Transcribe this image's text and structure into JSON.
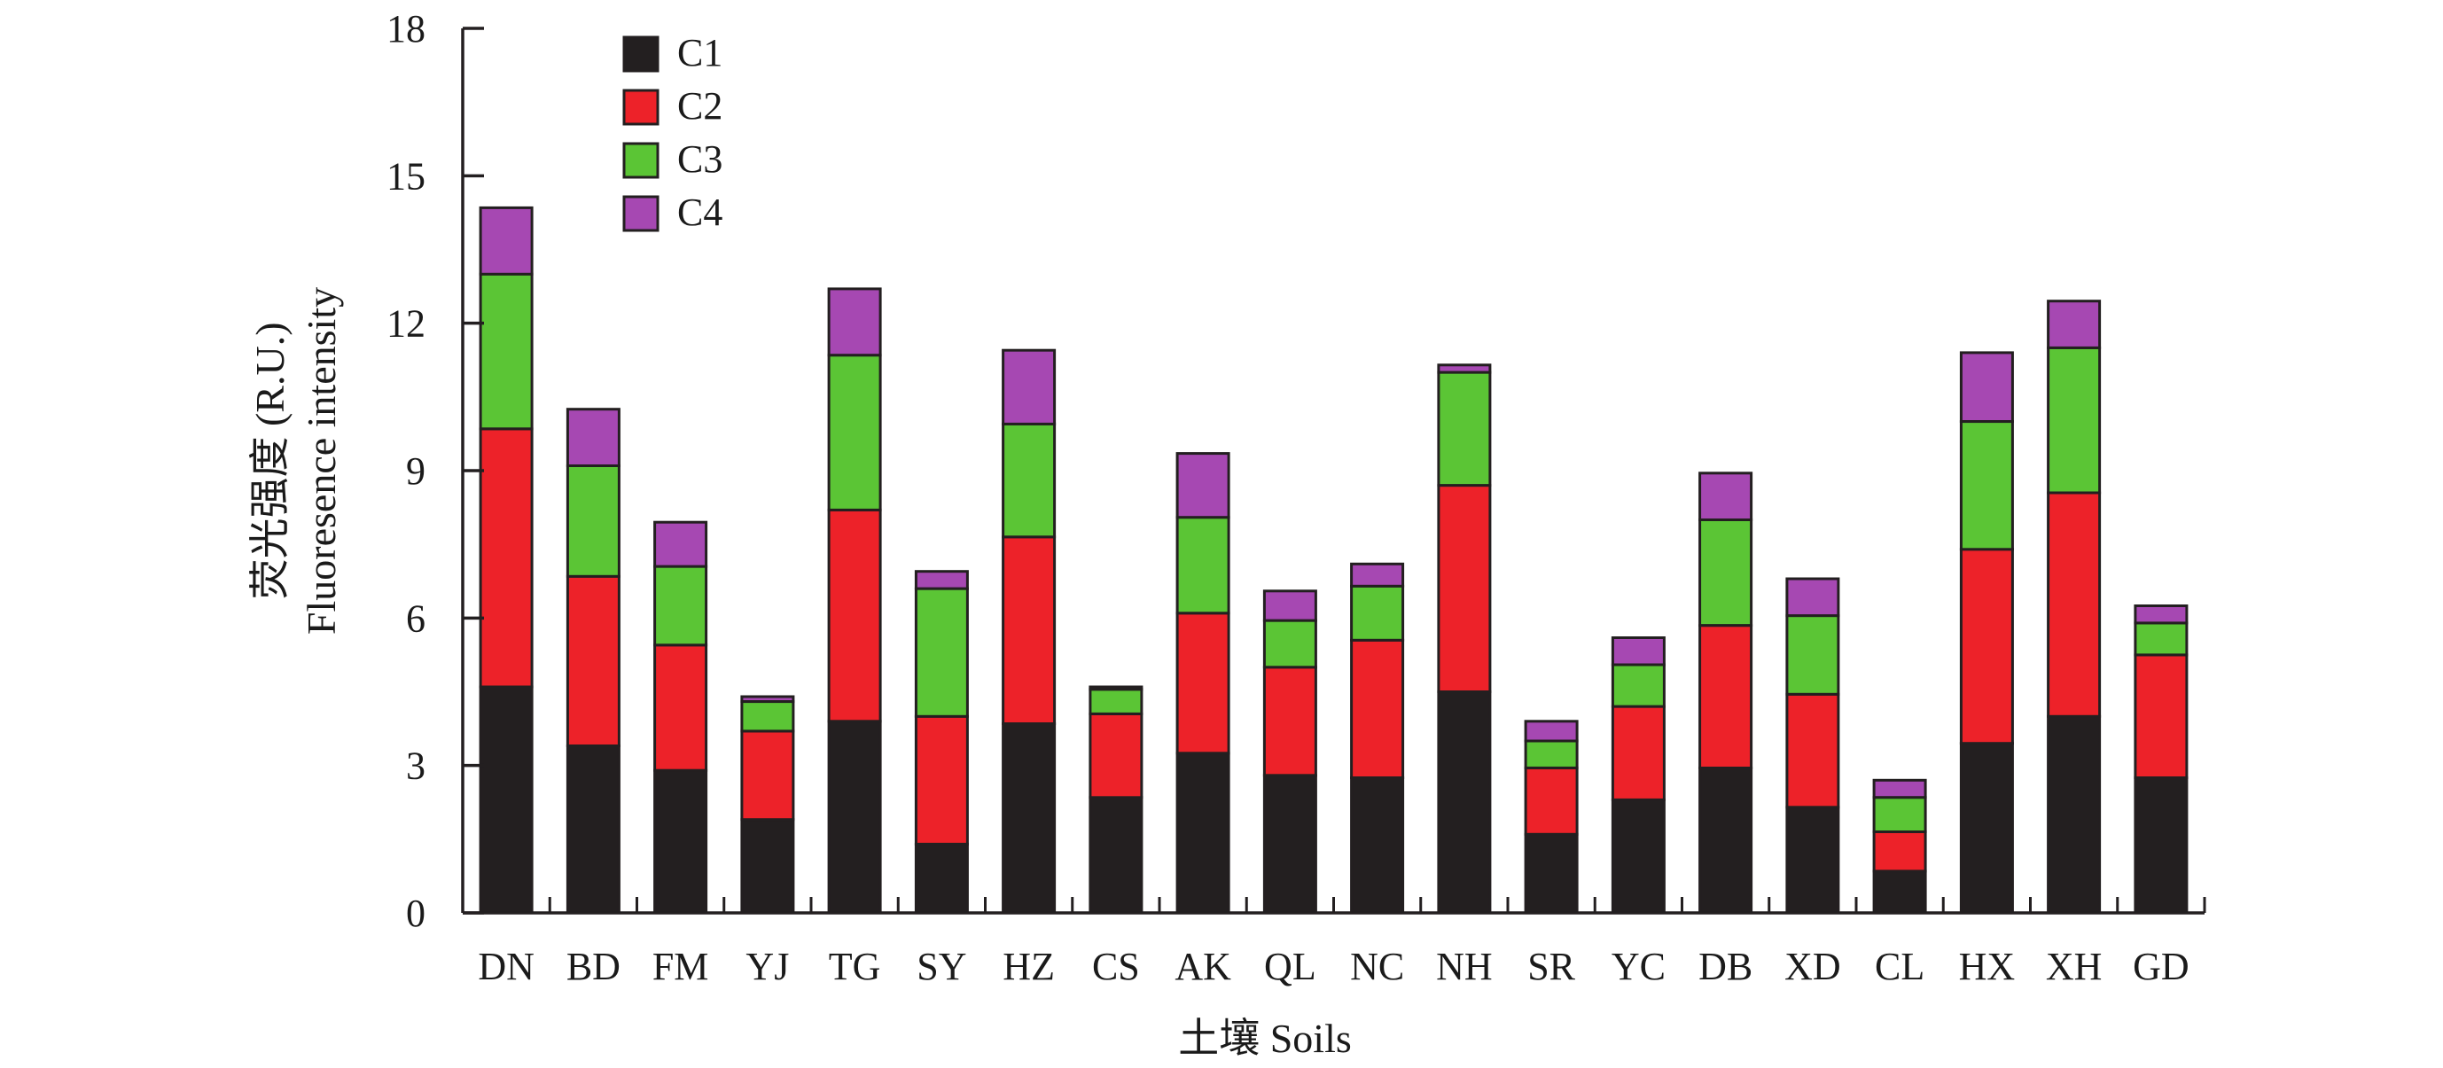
{
  "chart_data": {
    "type": "bar",
    "stacked": true,
    "title": "",
    "xlabel": "土壤 Soils",
    "ylabel_lines": [
      "荧光强度 (R.U.)",
      "Fluoresence intensity"
    ],
    "ylim": [
      0,
      18
    ],
    "yticks": [
      0,
      3,
      6,
      9,
      12,
      15,
      18
    ],
    "legend_position": "top-left",
    "grid": false,
    "categories": [
      "DN",
      "BD",
      "FM",
      "YJ",
      "TG",
      "SY",
      "HZ",
      "CS",
      "AK",
      "QL",
      "NC",
      "NH",
      "SR",
      "YC",
      "DB",
      "XD",
      "CL",
      "HX",
      "XH",
      "GD"
    ],
    "series": [
      {
        "name": "C1",
        "color": "#231f20",
        "values": [
          4.6,
          3.4,
          2.9,
          1.9,
          3.9,
          1.4,
          3.85,
          2.35,
          3.25,
          2.8,
          2.75,
          4.5,
          1.6,
          2.3,
          2.95,
          2.15,
          0.85,
          3.45,
          4.0,
          2.75
        ]
      },
      {
        "name": "C2",
        "color": "#ed2229",
        "values": [
          5.25,
          3.45,
          2.55,
          1.8,
          4.3,
          2.6,
          3.8,
          1.7,
          2.85,
          2.2,
          2.8,
          4.2,
          1.35,
          1.9,
          2.9,
          2.3,
          0.8,
          3.95,
          4.55,
          2.5
        ]
      },
      {
        "name": "C3",
        "color": "#5bc535",
        "values": [
          3.15,
          2.25,
          1.6,
          0.6,
          3.15,
          2.6,
          2.3,
          0.5,
          1.95,
          0.95,
          1.1,
          2.3,
          0.55,
          0.85,
          2.15,
          1.6,
          0.7,
          2.6,
          2.95,
          0.65
        ]
      },
      {
        "name": "C4",
        "color": "#a648b2",
        "values": [
          1.35,
          1.15,
          0.9,
          0.1,
          1.35,
          0.35,
          1.5,
          0.05,
          1.3,
          0.6,
          0.45,
          0.15,
          0.4,
          0.55,
          0.95,
          0.75,
          0.35,
          1.4,
          0.95,
          0.35
        ]
      }
    ]
  }
}
